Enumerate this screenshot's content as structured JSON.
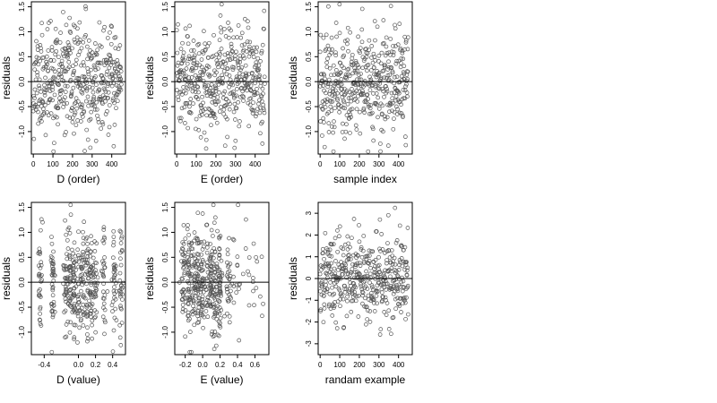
{
  "style": {
    "point_color": "#555555",
    "axis_color": "#000000",
    "background": "#ffffff"
  },
  "chart_data": [
    {
      "type": "scatter",
      "xlabel": "D (order)",
      "ylabel": "residuals",
      "xlim": [
        -10,
        470
      ],
      "ylim": [
        -1.45,
        1.6
      ],
      "xticks": [
        0,
        100,
        200,
        300,
        400
      ],
      "xtick_labels": [
        "0",
        "100",
        "200",
        "300",
        "400"
      ],
      "yticks": [
        -1.0,
        -0.5,
        0.0,
        0.5,
        1.0,
        1.5
      ],
      "ytick_labels": [
        "-1.0",
        "-0.5",
        "0.0",
        "0.5",
        "1.0",
        "1.5"
      ],
      "hline": 0,
      "n_points": 450,
      "x_mode": "index",
      "pattern": "wide",
      "seed": 11
    },
    {
      "type": "scatter",
      "xlabel": "E (order)",
      "ylabel": "residuals",
      "xlim": [
        -10,
        470
      ],
      "ylim": [
        -1.45,
        1.6
      ],
      "xticks": [
        0,
        100,
        200,
        300,
        400
      ],
      "xtick_labels": [
        "0",
        "100",
        "200",
        "300",
        "400"
      ],
      "yticks": [
        -1.0,
        -0.5,
        0.0,
        0.5,
        1.0,
        1.5
      ],
      "ytick_labels": [
        "-1.0",
        "-0.5",
        "0.0",
        "0.5",
        "1.0",
        "1.5"
      ],
      "hline": 0,
      "n_points": 450,
      "x_mode": "index",
      "pattern": "wide",
      "seed": 23
    },
    {
      "type": "scatter",
      "xlabel": "sample index",
      "ylabel": "residuals",
      "xlim": [
        -10,
        470
      ],
      "ylim": [
        -1.45,
        1.6
      ],
      "xticks": [
        0,
        100,
        200,
        300,
        400
      ],
      "xtick_labels": [
        "0",
        "100",
        "200",
        "300",
        "400"
      ],
      "yticks": [
        -1.0,
        -0.5,
        0.0,
        0.5,
        1.0,
        1.5
      ],
      "ytick_labels": [
        "-1.0",
        "-0.5",
        "0.0",
        "0.5",
        "1.0",
        "1.5"
      ],
      "hline": 0,
      "n_points": 450,
      "x_mode": "index",
      "pattern": "wide",
      "seed": 37
    },
    {
      "type": "scatter",
      "xlabel": "D (value)",
      "ylabel": "residuals",
      "xlim": [
        -0.55,
        0.55
      ],
      "ylim": [
        -1.45,
        1.6
      ],
      "xticks": [
        -0.4,
        0.0,
        0.2,
        0.4
      ],
      "xtick_labels": [
        "-0.4",
        "0.0",
        "0.2",
        "0.4"
      ],
      "yticks": [
        -1.0,
        -0.5,
        0.0,
        0.5,
        1.0,
        1.5
      ],
      "ytick_labels": [
        "-1.0",
        "-0.5",
        "0.0",
        "0.5",
        "1.0",
        "1.5"
      ],
      "hline": 0,
      "n_points": 450,
      "x_mode": "clustered",
      "x_clusters": [
        -0.45,
        -0.3,
        -0.15,
        -0.1,
        -0.05,
        0.0,
        0.05,
        0.1,
        0.15,
        0.2,
        0.3,
        0.42,
        0.5
      ],
      "pattern": "wide",
      "seed": 53
    },
    {
      "type": "scatter",
      "xlabel": "E (value)",
      "ylabel": "residuals",
      "xlim": [
        -0.32,
        0.76
      ],
      "ylim": [
        -1.45,
        1.6
      ],
      "xticks": [
        -0.2,
        0.0,
        0.2,
        0.4,
        0.6
      ],
      "xtick_labels": [
        "-0.2",
        "0.0",
        "0.2",
        "0.4",
        "0.6"
      ],
      "yticks": [
        -1.0,
        -0.5,
        0.0,
        0.5,
        1.0,
        1.5
      ],
      "ytick_labels": [
        "-1.0",
        "-0.5",
        "0.0",
        "0.5",
        "1.0",
        "1.5"
      ],
      "hline": 0,
      "n_points": 450,
      "x_mode": "skewed",
      "x_clusters": [
        -0.22,
        -0.15,
        -0.1,
        -0.05,
        0.0,
        0.05,
        0.1,
        0.15,
        0.2,
        0.3
      ],
      "pattern": "wide",
      "seed": 71
    },
    {
      "type": "scatter",
      "xlabel": "randam example",
      "ylabel": "residuals",
      "xlim": [
        -10,
        470
      ],
      "ylim": [
        -3.5,
        3.5
      ],
      "xticks": [
        0,
        100,
        200,
        300,
        400
      ],
      "xtick_labels": [
        "0",
        "100",
        "200",
        "300",
        "400"
      ],
      "yticks": [
        -3,
        -2,
        -1,
        0,
        1,
        2,
        3
      ],
      "ytick_labels": [
        "-3",
        "-2",
        "-1",
        "0",
        "1",
        "2",
        "3"
      ],
      "hline": 0,
      "n_points": 450,
      "x_mode": "index",
      "pattern": "normal",
      "seed": 97
    }
  ]
}
